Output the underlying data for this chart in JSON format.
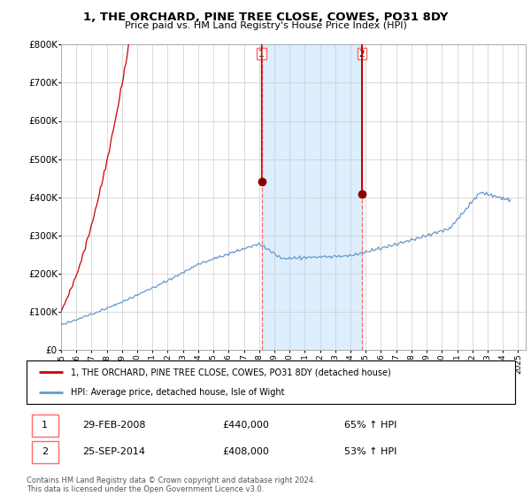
{
  "title": "1, THE ORCHARD, PINE TREE CLOSE, COWES, PO31 8DY",
  "subtitle": "Price paid vs. HM Land Registry's House Price Index (HPI)",
  "ylim": [
    0,
    800000
  ],
  "yticks": [
    0,
    100000,
    200000,
    300000,
    400000,
    500000,
    600000,
    700000,
    800000
  ],
  "sale1_price": 440000,
  "sale1_label": "29-FEB-2008",
  "sale1_hpi": "65% ↑ HPI",
  "sale2_price": 408000,
  "sale2_label": "25-SEP-2014",
  "sale2_hpi": "53% ↑ HPI",
  "line_color_property": "#cc0000",
  "line_color_hpi": "#6699cc",
  "marker_color": "#8b0000",
  "shade_color": "#ddeeff",
  "vline_color": "#ff6666",
  "legend_label_property": "1, THE ORCHARD, PINE TREE CLOSE, COWES, PO31 8DY (detached house)",
  "legend_label_hpi": "HPI: Average price, detached house, Isle of Wight",
  "footer": "Contains HM Land Registry data © Crown copyright and database right 2024.\nThis data is licensed under the Open Government Licence v3.0.",
  "xstart": 1995.0,
  "xend": 2025.5
}
